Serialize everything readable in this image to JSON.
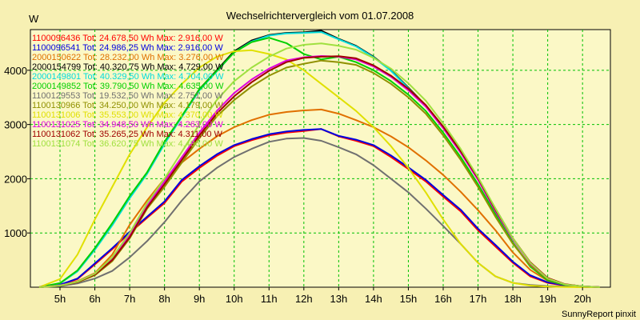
{
  "chart_data": {
    "type": "line",
    "title": "Wechselrichtervergleich vom 01.07.2008",
    "ylabel": "W",
    "xlabel": "",
    "footer": "SunnyReport pinxit",
    "xlim": [
      4.15,
      20.8
    ],
    "ylim": [
      0,
      4750
    ],
    "x_ticks": [
      5,
      6,
      7,
      8,
      9,
      10,
      11,
      12,
      13,
      14,
      15,
      16,
      17,
      18,
      19,
      20
    ],
    "x_tick_labels": [
      "5h",
      "6h",
      "7h",
      "8h",
      "9h",
      "10h",
      "11h",
      "12h",
      "13h",
      "14h",
      "15h",
      "16h",
      "17h",
      "18h",
      "19h",
      "20h"
    ],
    "y_ticks": [
      1000,
      2000,
      3000,
      4000
    ],
    "y_tick_labels": [
      "1000",
      "2000",
      "3000",
      "4000"
    ],
    "grid": true,
    "legend_position": "top-left",
    "series": [
      {
        "name": "1100096436",
        "legend": "1100096436 Tot: 24.678,50 Wh Max: 2.916,00 W",
        "color": "#ff0000",
        "x": [
          4.4,
          5,
          5.5,
          6,
          6.5,
          7,
          7.5,
          8,
          8.5,
          9,
          9.5,
          10,
          10.5,
          11,
          11.5,
          12,
          12.5,
          13,
          13.5,
          14,
          14.5,
          15,
          15.5,
          16,
          16.5,
          17,
          17.5,
          18,
          18.5,
          19,
          19.5,
          20,
          20.5
        ],
        "y": [
          0,
          40,
          150,
          420,
          700,
          1000,
          1280,
          1550,
          1950,
          2200,
          2420,
          2600,
          2710,
          2800,
          2850,
          2880,
          2916,
          2780,
          2700,
          2600,
          2400,
          2180,
          1950,
          1670,
          1400,
          1050,
          750,
          450,
          200,
          80,
          30,
          10,
          0
        ]
      },
      {
        "name": "1100096541",
        "legend": "1100096541 Tot: 24.986,25 Wh Max: 2.916,00 W",
        "color": "#0000e0",
        "x": [
          4.4,
          5,
          5.5,
          6,
          6.5,
          7,
          7.5,
          8,
          8.5,
          9,
          9.5,
          10,
          10.5,
          11,
          11.5,
          12,
          12.5,
          13,
          13.5,
          14,
          14.5,
          15,
          15.5,
          16,
          16.5,
          17,
          17.5,
          18,
          18.5,
          19,
          19.5,
          20,
          20.5
        ],
        "y": [
          0,
          45,
          160,
          440,
          720,
          1020,
          1300,
          1580,
          1980,
          2230,
          2450,
          2620,
          2730,
          2820,
          2870,
          2900,
          2916,
          2790,
          2720,
          2620,
          2430,
          2210,
          1980,
          1700,
          1430,
          1080,
          780,
          470,
          220,
          90,
          35,
          12,
          0
        ]
      },
      {
        "name": "2000150622",
        "legend": "2000150622 Tot: 28.232,00 Wh Max: 3.276,00 W",
        "color": "#e07000",
        "x": [
          4.4,
          5,
          5.5,
          6,
          6.5,
          7,
          7.5,
          8,
          8.5,
          9,
          9.5,
          10,
          10.5,
          11,
          11.5,
          12,
          12.5,
          13,
          13.5,
          14,
          14.5,
          15,
          15.5,
          16,
          16.5,
          17,
          17.5,
          18,
          18.5,
          19,
          19.5,
          20,
          20.5
        ],
        "y": [
          0,
          30,
          110,
          260,
          600,
          1150,
          1600,
          2000,
          2300,
          2550,
          2780,
          2950,
          3080,
          3180,
          3230,
          3260,
          3276,
          3200,
          3080,
          2950,
          2780,
          2580,
          2340,
          2070,
          1760,
          1420,
          1050,
          640,
          320,
          120,
          40,
          12,
          0
        ]
      },
      {
        "name": "2000154799",
        "legend": "2000154799 Tot: 40.320,75 Wh Max: 4.729,00 W",
        "color": "#000000",
        "x": [
          4.4,
          5,
          5.5,
          6,
          6.5,
          7,
          7.5,
          8,
          8.5,
          9,
          9.5,
          10,
          10.5,
          11,
          11.5,
          12,
          12.5,
          13,
          13.5,
          14,
          14.5,
          15,
          15.5,
          16,
          16.5,
          17,
          17.5,
          18,
          18.5,
          19,
          19.5,
          20,
          20.5
        ],
        "y": [
          0,
          70,
          300,
          700,
          1150,
          1650,
          2100,
          2650,
          3150,
          3650,
          4000,
          4350,
          4550,
          4650,
          4690,
          4700,
          4729,
          4580,
          4450,
          4250,
          4000,
          3680,
          3350,
          2950,
          2500,
          2000,
          1450,
          900,
          450,
          160,
          50,
          15,
          0
        ]
      },
      {
        "name": "2000149801",
        "legend": "2000149801 Tot: 40.329,50 Wh Max: 4.704,00 W",
        "color": "#00dcdc",
        "x": [
          4.4,
          5,
          5.5,
          6,
          6.5,
          7,
          7.5,
          8,
          8.5,
          9,
          9.5,
          10,
          10.5,
          11,
          11.5,
          12,
          12.5,
          13,
          13.5,
          14,
          14.5,
          15,
          15.5,
          16,
          16.5,
          17,
          17.5,
          18,
          18.5,
          19,
          19.5,
          20,
          20.5
        ],
        "y": [
          0,
          70,
          290,
          690,
          1140,
          1640,
          2090,
          2640,
          3140,
          3630,
          3980,
          4330,
          4530,
          4640,
          4680,
          4690,
          4704,
          4570,
          4440,
          4240,
          3990,
          3670,
          3340,
          2940,
          2490,
          1990,
          1440,
          890,
          440,
          150,
          45,
          15,
          0
        ]
      },
      {
        "name": "2000149852",
        "legend": "2000149852 Tot: 39.790,50 Wh Max: 4.635,00 W",
        "color": "#00d000",
        "x": [
          4.4,
          5,
          5.5,
          6,
          6.5,
          7,
          7.5,
          8,
          8.5,
          9,
          9.5,
          10,
          10.5,
          11,
          11.5,
          12,
          12.5,
          13,
          13.5,
          14,
          14.5,
          15,
          15.5,
          16,
          16.5,
          17,
          17.5,
          18,
          18.5,
          19,
          19.5,
          20,
          20.5
        ],
        "y": [
          0,
          75,
          310,
          720,
          1180,
          1680,
          2120,
          2680,
          3160,
          3650,
          3990,
          4330,
          4520,
          4600,
          4500,
          4300,
          4200,
          4250,
          4150,
          4000,
          3800,
          3550,
          3250,
          2850,
          2400,
          1900,
          1350,
          820,
          380,
          130,
          40,
          12,
          0
        ]
      },
      {
        "name": "1100129553",
        "legend": "1100129553 Tot: 19.532,50 Wh Max: 2.751,00 W",
        "color": "#707070",
        "x": [
          4.4,
          5,
          5.5,
          6,
          6.5,
          7,
          7.5,
          8,
          8.5,
          9,
          9.5,
          10,
          10.5,
          11,
          11.5,
          12,
          12.5,
          13,
          13.5,
          14,
          14.5,
          15,
          15.5,
          16,
          16.5,
          17,
          17.5,
          18,
          18.5,
          19,
          19.5,
          20,
          20.5
        ],
        "y": [
          0,
          20,
          70,
          160,
          300,
          550,
          850,
          1200,
          1600,
          1950,
          2200,
          2400,
          2550,
          2680,
          2740,
          2751,
          2700,
          2580,
          2450,
          2250,
          2000,
          1750,
          1450,
          1130,
          800,
          450,
          200,
          80,
          40,
          20,
          10,
          5,
          0
        ]
      },
      {
        "name": "1100130966",
        "legend": "1100130966 Tot: 34.250,00 Wh Max: 4.179,00 W",
        "color": "#909000",
        "x": [
          4.4,
          5,
          5.5,
          6,
          6.5,
          7,
          7.5,
          8,
          8.5,
          9,
          9.5,
          10,
          10.5,
          11,
          11.5,
          12,
          12.5,
          13,
          13.5,
          14,
          14.5,
          15,
          15.5,
          16,
          16.5,
          17,
          17.5,
          18,
          18.5,
          19,
          19.5,
          20,
          20.5
        ],
        "y": [
          0,
          30,
          90,
          220,
          480,
          900,
          1450,
          1850,
          2300,
          2750,
          3150,
          3450,
          3700,
          3900,
          4050,
          4120,
          4179,
          4150,
          4100,
          3950,
          3750,
          3500,
          3200,
          2800,
          2350,
          1850,
          1300,
          800,
          400,
          150,
          50,
          15,
          0
        ]
      },
      {
        "name": "1100131006",
        "legend": "1100131006 Tot: 35.553,00 Wh Max: 4.370,00 W",
        "color": "#e0e000",
        "x": [
          4.4,
          5,
          5.5,
          6,
          6.5,
          7,
          7.5,
          8,
          8.5,
          9,
          9.5,
          10,
          10.5,
          11,
          11.5,
          12,
          12.5,
          13,
          13.5,
          14,
          14.5,
          15,
          15.5,
          16,
          16.5,
          17,
          17.5,
          18,
          18.5,
          19,
          19.5,
          20,
          20.5
        ],
        "y": [
          0,
          150,
          600,
          1250,
          1850,
          2450,
          2950,
          3400,
          3750,
          4050,
          4250,
          4350,
          4370,
          4300,
          4200,
          4000,
          3750,
          3500,
          3250,
          2950,
          2600,
          2200,
          1750,
          1250,
          800,
          450,
          200,
          80,
          30,
          10,
          5,
          0,
          0
        ]
      },
      {
        "name": "1100131025",
        "legend": "1100131025 Tot: 34.948,50 Wh Max: 4.263,00 W",
        "color": "#e000e0",
        "x": [
          4.4,
          5,
          5.5,
          6,
          6.5,
          7,
          7.5,
          8,
          8.5,
          9,
          9.5,
          10,
          10.5,
          11,
          11.5,
          12,
          12.5,
          13,
          13.5,
          14,
          14.5,
          15,
          15.5,
          16,
          16.5,
          17,
          17.5,
          18,
          18.5,
          19,
          19.5,
          20,
          20.5
        ],
        "y": [
          0,
          35,
          100,
          250,
          520,
          950,
          1500,
          1950,
          2400,
          2850,
          3250,
          3580,
          3830,
          4030,
          4180,
          4240,
          4263,
          4250,
          4200,
          4070,
          3880,
          3630,
          3330,
          2930,
          2480,
          1980,
          1400,
          880,
          440,
          160,
          50,
          15,
          0
        ]
      },
      {
        "name": "1100131062",
        "legend": "1100131062 Tot: 35.265,25 Wh Max: 4.311,00 W",
        "color": "#a00000",
        "x": [
          4.4,
          5,
          5.5,
          6,
          6.5,
          7,
          7.5,
          8,
          8.5,
          9,
          9.5,
          10,
          10.5,
          11,
          11.5,
          12,
          12.5,
          13,
          13.5,
          14,
          14.5,
          15,
          15.5,
          16,
          16.5,
          17,
          17.5,
          18,
          18.5,
          19,
          19.5,
          20,
          20.5
        ],
        "y": [
          0,
          30,
          95,
          235,
          500,
          920,
          1470,
          1900,
          2350,
          2800,
          3200,
          3520,
          3780,
          3990,
          4150,
          4230,
          4250,
          4260,
          4220,
          4090,
          3900,
          3660,
          3360,
          2960,
          2510,
          2010,
          1430,
          900,
          460,
          170,
          55,
          15,
          0
        ]
      },
      {
        "name": "1100131074",
        "legend": "1100131074 Tot: 36.620,75 Wh Max: 4.496,00 W",
        "color": "#a0e040",
        "x": [
          4.4,
          5,
          5.5,
          6,
          6.5,
          7,
          7.5,
          8,
          8.5,
          9,
          9.5,
          10,
          10.5,
          11,
          11.5,
          12,
          12.5,
          13,
          13.5,
          14,
          14.5,
          15,
          15.5,
          16,
          16.5,
          17,
          17.5,
          18,
          18.5,
          19,
          19.5,
          20,
          20.5
        ],
        "y": [
          0,
          30,
          100,
          250,
          550,
          1000,
          1550,
          2000,
          2500,
          3000,
          3450,
          3800,
          4050,
          4250,
          4400,
          4470,
          4496,
          4450,
          4380,
          4230,
          4030,
          3760,
          3440,
          3020,
          2550,
          2030,
          1450,
          900,
          450,
          160,
          50,
          15,
          0
        ]
      }
    ]
  }
}
